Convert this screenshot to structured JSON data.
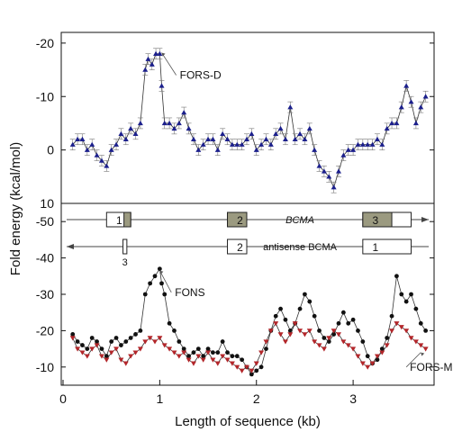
{
  "chart_data": {
    "type": "line",
    "xlabel": "Length of sequence (kb)",
    "ylabel": "Fold energy (kcal/mol)",
    "x_ticks": [
      "0",
      "1",
      "2",
      "3"
    ],
    "panels": [
      {
        "name": "top",
        "y_range": [
          10,
          -22
        ],
        "y_ticks": [
          "-20",
          "-10",
          "0",
          "10"
        ],
        "annotation": "FORS-D",
        "series": [
          {
            "marker": "triangle",
            "color": "#1b1f8c",
            "x": [
              0.1,
              0.15,
              0.2,
              0.25,
              0.3,
              0.35,
              0.4,
              0.45,
              0.5,
              0.55,
              0.6,
              0.65,
              0.7,
              0.75,
              0.8,
              0.85,
              0.88,
              0.92,
              0.96,
              1.0,
              1.02,
              1.05,
              1.1,
              1.15,
              1.2,
              1.25,
              1.3,
              1.35,
              1.4,
              1.45,
              1.5,
              1.55,
              1.6,
              1.65,
              1.7,
              1.75,
              1.8,
              1.85,
              1.9,
              1.95,
              2.0,
              2.05,
              2.1,
              2.15,
              2.2,
              2.25,
              2.3,
              2.35,
              2.4,
              2.45,
              2.5,
              2.55,
              2.6,
              2.65,
              2.7,
              2.75,
              2.8,
              2.85,
              2.9,
              2.95,
              3.0,
              3.05,
              3.1,
              3.15,
              3.2,
              3.25,
              3.3,
              3.35,
              3.4,
              3.45,
              3.5,
              3.55,
              3.6,
              3.65,
              3.7,
              3.75
            ],
            "y": [
              -1,
              -2,
              -2,
              0,
              -1,
              1,
              2,
              3,
              0,
              -1,
              -3,
              -2,
              -4,
              -3,
              -5,
              -15,
              -17,
              -16,
              -18,
              -18,
              -12,
              -5,
              -5,
              -4,
              -5,
              -7,
              -4,
              -2,
              0,
              -1,
              -2,
              -2,
              0,
              -3,
              -2,
              -1,
              -1,
              -1,
              -2,
              -3,
              0,
              -1,
              -2,
              -1,
              -3,
              -4,
              -2,
              -8,
              -2,
              -3,
              -2,
              -4,
              0,
              3,
              4,
              5,
              7,
              4,
              1,
              0,
              0,
              -1,
              -1,
              -1,
              -1,
              -2,
              -1,
              -4,
              -5,
              -5,
              -8,
              -12,
              -9,
              -5,
              -8,
              -10
            ]
          }
        ]
      },
      {
        "name": "bottom",
        "y_range": [
          -5,
          -55
        ],
        "y_ticks": [
          "-50",
          "-40",
          "-30",
          "-20",
          "-10"
        ],
        "annotations": [
          "FONS",
          "FORS-M"
        ],
        "series": [
          {
            "marker": "circle",
            "color": "#111111",
            "x": [
              0.1,
              0.15,
              0.2,
              0.25,
              0.3,
              0.35,
              0.4,
              0.45,
              0.5,
              0.55,
              0.6,
              0.65,
              0.7,
              0.75,
              0.8,
              0.85,
              0.9,
              0.95,
              1.0,
              1.02,
              1.05,
              1.1,
              1.15,
              1.2,
              1.25,
              1.3,
              1.35,
              1.4,
              1.45,
              1.5,
              1.55,
              1.6,
              1.65,
              1.7,
              1.75,
              1.8,
              1.85,
              1.9,
              1.95,
              2.0,
              2.05,
              2.1,
              2.15,
              2.2,
              2.25,
              2.3,
              2.35,
              2.4,
              2.45,
              2.5,
              2.55,
              2.6,
              2.65,
              2.7,
              2.75,
              2.8,
              2.85,
              2.9,
              2.95,
              3.0,
              3.05,
              3.1,
              3.15,
              3.2,
              3.25,
              3.3,
              3.35,
              3.4,
              3.45,
              3.5,
              3.55,
              3.6,
              3.65,
              3.7,
              3.75
            ],
            "y": [
              -19,
              -17,
              -16,
              -15,
              -18,
              -17,
              -15,
              -13,
              -17,
              -18,
              -16,
              -17,
              -18,
              -19,
              -20,
              -30,
              -33,
              -35,
              -37,
              -33,
              -30,
              -22,
              -20,
              -17,
              -15,
              -13,
              -14,
              -15,
              -13,
              -15,
              -14,
              -14,
              -17,
              -14,
              -13,
              -13,
              -12,
              -10,
              -8,
              -9,
              -10,
              -15,
              -20,
              -24,
              -26,
              -23,
              -20,
              -22,
              -26,
              -30,
              -28,
              -24,
              -20,
              -18,
              -17,
              -19,
              -22,
              -25,
              -22,
              -23,
              -20,
              -17,
              -13,
              -11,
              -12,
              -15,
              -18,
              -24,
              -35,
              -30,
              -28,
              -30,
              -26,
              -22,
              -20
            ]
          },
          {
            "marker": "triangle-down",
            "color": "#b3262a",
            "x": [
              0.1,
              0.15,
              0.2,
              0.25,
              0.3,
              0.35,
              0.4,
              0.45,
              0.5,
              0.55,
              0.6,
              0.65,
              0.7,
              0.75,
              0.8,
              0.85,
              0.9,
              0.95,
              1.0,
              1.05,
              1.1,
              1.15,
              1.2,
              1.25,
              1.3,
              1.35,
              1.4,
              1.45,
              1.5,
              1.55,
              1.6,
              1.65,
              1.7,
              1.75,
              1.8,
              1.85,
              1.9,
              1.95,
              2.0,
              2.05,
              2.1,
              2.15,
              2.2,
              2.25,
              2.3,
              2.35,
              2.4,
              2.45,
              2.5,
              2.55,
              2.6,
              2.65,
              2.7,
              2.75,
              2.8,
              2.85,
              2.9,
              2.95,
              3.0,
              3.05,
              3.1,
              3.15,
              3.2,
              3.25,
              3.3,
              3.35,
              3.4,
              3.45,
              3.5,
              3.55,
              3.6,
              3.65,
              3.7,
              3.75
            ],
            "y": [
              -18,
              -15,
              -14,
              -13,
              -15,
              -16,
              -13,
              -12,
              -14,
              -15,
              -12,
              -11,
              -13,
              -14,
              -15,
              -17,
              -18,
              -17,
              -18,
              -16,
              -15,
              -14,
              -13,
              -14,
              -12,
              -11,
              -13,
              -12,
              -14,
              -12,
              -11,
              -13,
              -12,
              -11,
              -10,
              -9,
              -10,
              -9,
              -11,
              -14,
              -17,
              -20,
              -22,
              -19,
              -17,
              -19,
              -22,
              -20,
              -19,
              -20,
              -17,
              -16,
              -15,
              -18,
              -20,
              -19,
              -17,
              -16,
              -15,
              -13,
              -11,
              -10,
              -11,
              -13,
              -14,
              -16,
              -20,
              -22,
              -21,
              -20,
              -18,
              -17,
              -16,
              -15
            ]
          }
        ]
      }
    ],
    "gene_tracks": [
      {
        "label": "BCMA",
        "direction": "right",
        "boxes": [
          {
            "number": "1",
            "start": 0.45,
            "end": 0.7,
            "shaded_from": 0.63
          },
          {
            "number": "2",
            "start": 1.7,
            "end": 1.9,
            "shaded_from": 1.7
          },
          {
            "number": "3",
            "start": 3.1,
            "end": 3.6,
            "shaded_from": 3.1,
            "shaded_to": 3.4
          }
        ]
      },
      {
        "label": "antisense BCMA",
        "direction": "left",
        "boxes": [
          {
            "number": "3",
            "start": 0.62,
            "end": 0.66,
            "label_below": true
          },
          {
            "number": "2",
            "start": 1.7,
            "end": 1.9
          },
          {
            "number": "1",
            "start": 3.1,
            "end": 3.6
          }
        ]
      }
    ]
  }
}
